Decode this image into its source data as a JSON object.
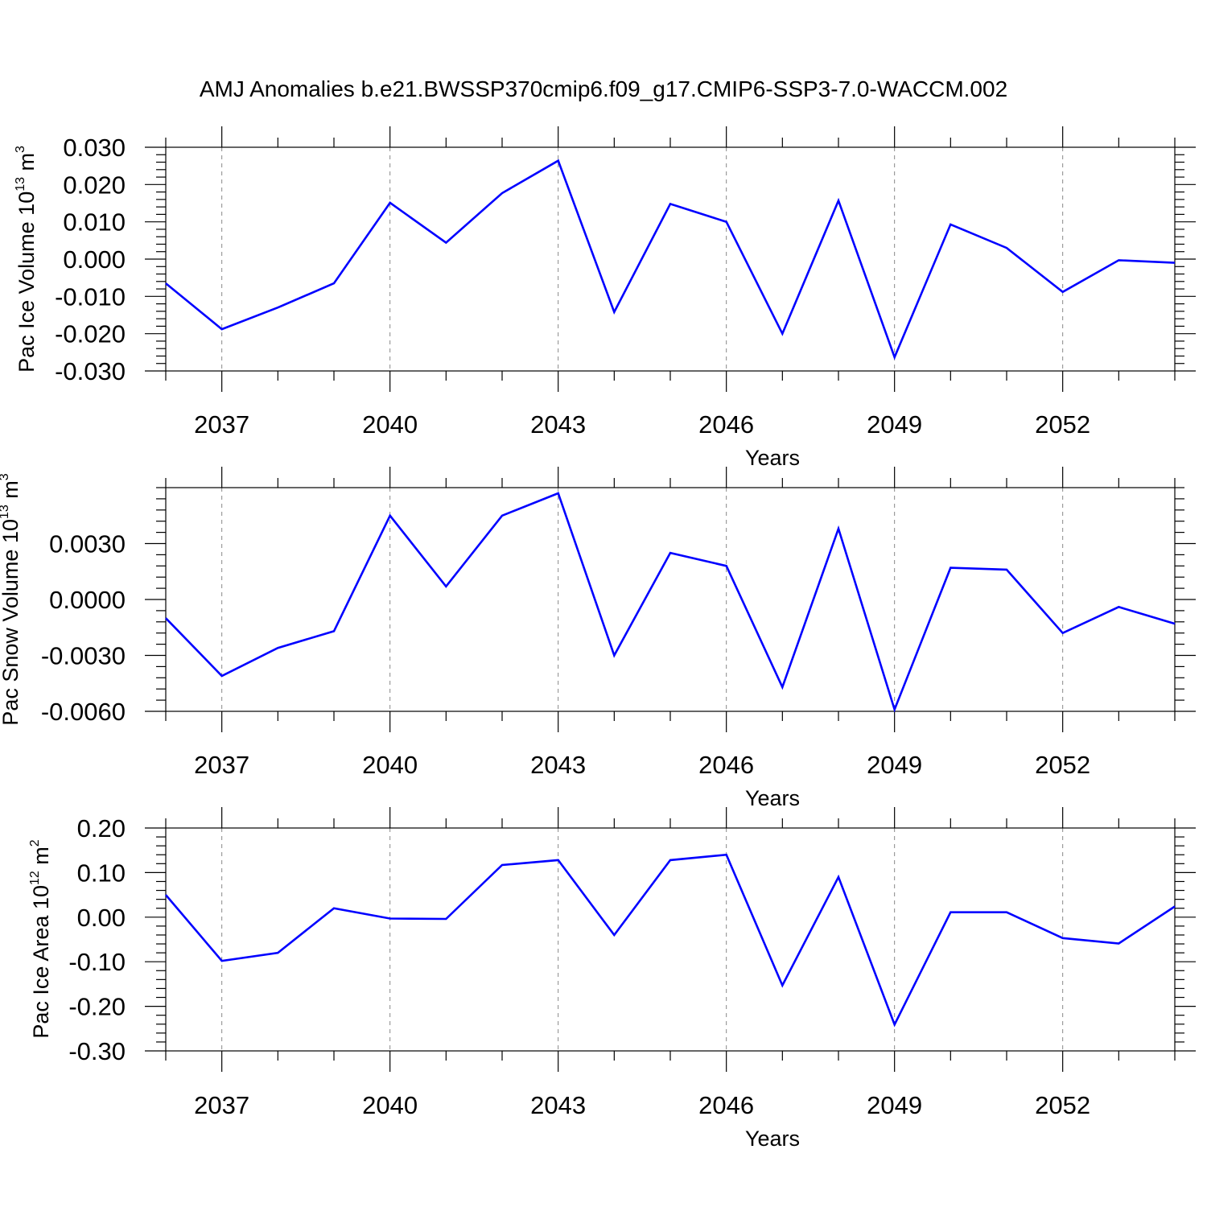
{
  "title": "AMJ Anomalies b.e21.BWSSP370cmip6.f09_g17.CMIP6-SSP3-7.0-WACCM.002",
  "colors": {
    "series": "#0000ff",
    "frame": "#000000",
    "grid": "#888888"
  },
  "chart_data": [
    {
      "type": "line",
      "ylabel": "Pac Ice Volume 10",
      "ylabel_exp": "13",
      "ylabel_unit": " m",
      "ylabel_unit_exp": "3",
      "xlabel": "Years",
      "xlim": [
        2036,
        2054
      ],
      "ylim": [
        -0.03,
        0.03
      ],
      "x_ticks": [
        "2037",
        "2040",
        "2043",
        "2046",
        "2049",
        "2052"
      ],
      "y_ticks": [
        "0.030",
        "0.020",
        "0.010",
        "0.000",
        "-0.010",
        "-0.020",
        "-0.030"
      ],
      "grid_x": true,
      "series": [
        {
          "x": [
            2036,
            2037,
            2038,
            2039,
            2040,
            2041,
            2042,
            2043,
            2044,
            2045,
            2046,
            2047,
            2048,
            2049,
            2050,
            2051,
            2052,
            2053,
            2054
          ],
          "values": [
            -0.0065,
            -0.0188,
            -0.013,
            -0.0065,
            0.0151,
            0.0044,
            0.0177,
            0.0264,
            -0.0142,
            0.0148,
            0.01,
            -0.02,
            0.0157,
            -0.0263,
            0.0093,
            0.003,
            -0.0088,
            -0.0003,
            -0.001
          ]
        }
      ]
    },
    {
      "type": "line",
      "ylabel": "Pac Snow Volume 10",
      "ylabel_exp": "13",
      "ylabel_unit": " m",
      "ylabel_unit_exp": "3",
      "xlabel": "Years",
      "xlim": [
        2036,
        2054
      ],
      "ylim": [
        -0.006,
        0.006
      ],
      "x_ticks": [
        "2037",
        "2040",
        "2043",
        "2046",
        "2049",
        "2052"
      ],
      "y_ticks": [
        "0.0030",
        "0.0000",
        "-0.0030",
        "-0.0060"
      ],
      "grid_x": true,
      "series": [
        {
          "x": [
            2036,
            2037,
            2038,
            2039,
            2040,
            2041,
            2042,
            2043,
            2044,
            2045,
            2046,
            2047,
            2048,
            2049,
            2050,
            2051,
            2052,
            2053,
            2054
          ],
          "values": [
            -0.001,
            -0.0041,
            -0.0026,
            -0.0017,
            0.0045,
            0.0007,
            0.0045,
            0.0057,
            -0.003,
            0.0025,
            0.0018,
            -0.0047,
            0.0038,
            -0.0059,
            0.0017,
            0.0016,
            -0.0018,
            -0.0004,
            -0.0013
          ]
        }
      ]
    },
    {
      "type": "line",
      "ylabel": "Pac Ice Area 10",
      "ylabel_exp": "12",
      "ylabel_unit": " m",
      "ylabel_unit_exp": "2",
      "xlabel": "Years",
      "xlim": [
        2036,
        2054
      ],
      "ylim": [
        -0.3,
        0.2
      ],
      "x_ticks": [
        "2037",
        "2040",
        "2043",
        "2046",
        "2049",
        "2052"
      ],
      "y_ticks": [
        "0.20",
        "0.10",
        "0.00",
        "-0.10",
        "-0.20",
        "-0.30"
      ],
      "grid_x": true,
      "series": [
        {
          "x": [
            2036,
            2037,
            2038,
            2039,
            2040,
            2041,
            2042,
            2043,
            2044,
            2045,
            2046,
            2047,
            2048,
            2049,
            2050,
            2051,
            2052,
            2053,
            2054
          ],
          "values": [
            0.05,
            -0.098,
            -0.08,
            0.02,
            -0.003,
            -0.004,
            0.117,
            0.128,
            -0.04,
            0.128,
            0.14,
            -0.153,
            0.09,
            -0.241,
            0.011,
            0.011,
            -0.047,
            -0.059,
            0.024
          ]
        }
      ]
    }
  ]
}
